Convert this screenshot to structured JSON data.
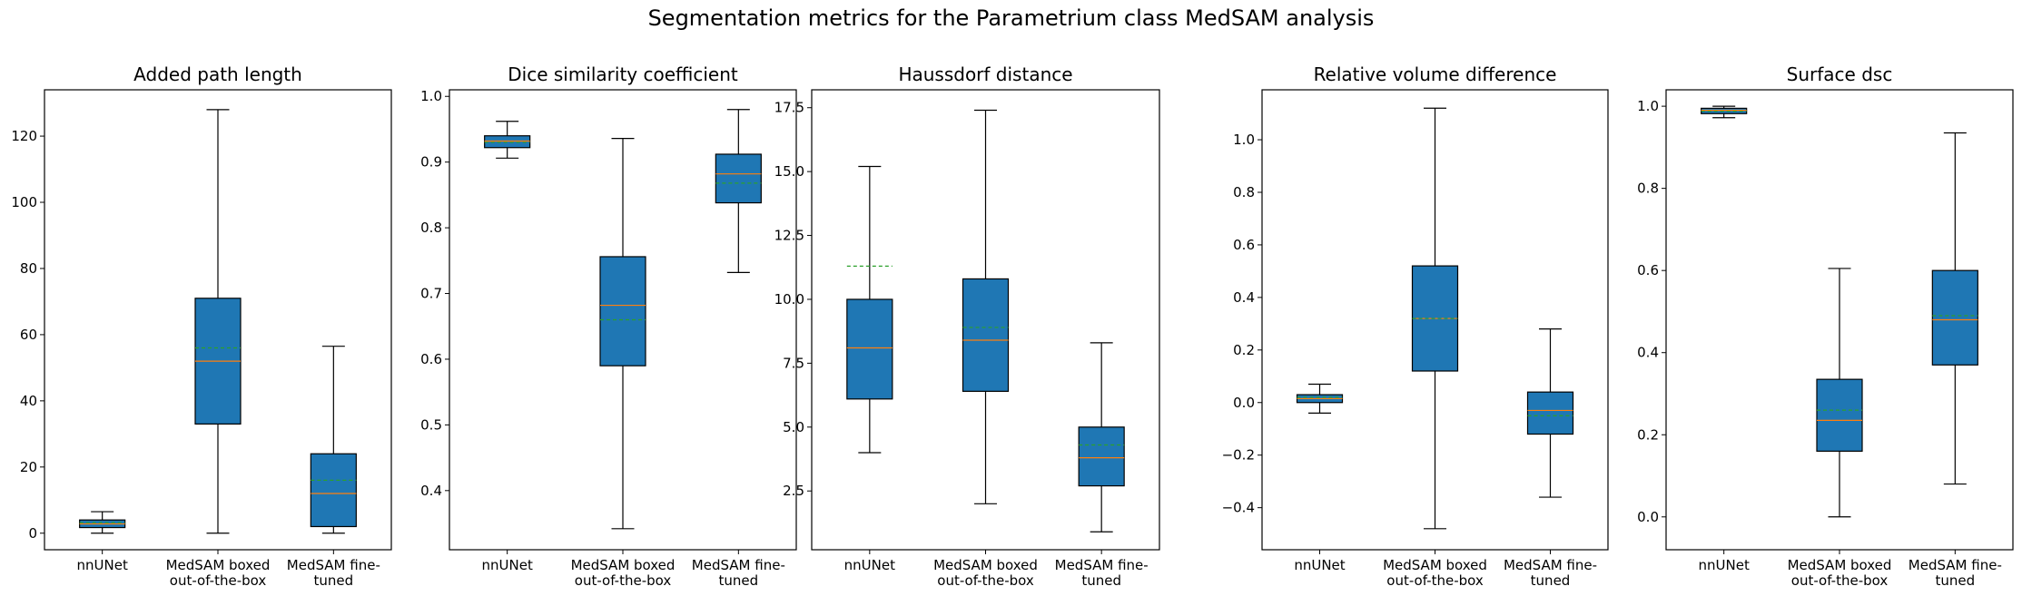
{
  "suptitle": "Segmentation metrics for the Parametrium class MedSAM analysis",
  "colors": {
    "box_fill": "#1f77b4",
    "median": "#ff7f0e",
    "mean": "#2ca02c",
    "whisker": "#000000"
  },
  "chart_data": [
    {
      "type": "box",
      "title": "Added path length",
      "categories": [
        "nnUNet",
        "MedSAM boxed\nout-of-the-box",
        "MedSAM fine-\ntuned"
      ],
      "ylim": [
        -5,
        134
      ],
      "yticks": [
        0,
        20,
        40,
        60,
        80,
        100,
        120
      ],
      "ytick_labels": [
        "0",
        "20",
        "40",
        "60",
        "80",
        "100",
        "120"
      ],
      "boxes": [
        {
          "whislo": 0,
          "q1": 1.7,
          "med": 2.8,
          "mean": 3.2,
          "q3": 4.0,
          "whishi": 6.5
        },
        {
          "whislo": 0,
          "q1": 33,
          "med": 52,
          "mean": 56,
          "q3": 71,
          "whishi": 128
        },
        {
          "whislo": 0,
          "q1": 2,
          "med": 12,
          "mean": 16,
          "q3": 24,
          "whishi": 56.5
        }
      ]
    },
    {
      "type": "box",
      "title": "Dice similarity coefficient",
      "categories": [
        "nnUNet",
        "MedSAM boxed\nout-of-the-box",
        "MedSAM fine-\ntuned"
      ],
      "ylim": [
        0.31,
        1.01
      ],
      "yticks": [
        0.4,
        0.5,
        0.6,
        0.7,
        0.8,
        0.9,
        1.0
      ],
      "ytick_labels": [
        "0.4",
        "0.5",
        "0.6",
        "0.7",
        "0.8",
        "0.9",
        "1.0"
      ],
      "boxes": [
        {
          "whislo": 0.906,
          "q1": 0.922,
          "med": 0.932,
          "mean": 0.93,
          "q3": 0.94,
          "whishi": 0.962
        },
        {
          "whislo": 0.342,
          "q1": 0.59,
          "med": 0.682,
          "mean": 0.66,
          "q3": 0.756,
          "whishi": 0.936
        },
        {
          "whislo": 0.732,
          "q1": 0.838,
          "med": 0.882,
          "mean": 0.868,
          "q3": 0.912,
          "whishi": 0.98
        }
      ]
    },
    {
      "type": "box",
      "title": "Haussdorf distance",
      "categories": [
        "nnUNet",
        "MedSAM boxed\nout-of-the-box",
        "MedSAM fine-\ntuned"
      ],
      "ylim": [
        0.2,
        18.2
      ],
      "yticks": [
        2.5,
        5.0,
        7.5,
        10.0,
        12.5,
        15.0,
        17.5
      ],
      "ytick_labels": [
        "2.5",
        "5.0",
        "7.5",
        "10.0",
        "12.5",
        "15.0",
        "17.5"
      ],
      "boxes": [
        {
          "whislo": 4.0,
          "q1": 6.1,
          "med": 8.1,
          "mean": 11.3,
          "q3": 10.0,
          "whishi": 15.2
        },
        {
          "whislo": 2.0,
          "q1": 6.4,
          "med": 8.4,
          "mean": 8.9,
          "q3": 10.8,
          "whishi": 17.4
        },
        {
          "whislo": 0.9,
          "q1": 2.7,
          "med": 3.8,
          "mean": 4.3,
          "q3": 5.0,
          "whishi": 8.3
        }
      ]
    },
    {
      "type": "box",
      "title": "Relative volume difference",
      "categories": [
        "nnUNet",
        "MedSAM boxed\nout-of-the-box",
        "MedSAM fine-\ntuned"
      ],
      "ylim": [
        -0.56,
        1.19
      ],
      "yticks": [
        -0.4,
        -0.2,
        0.0,
        0.2,
        0.4,
        0.6,
        0.8,
        1.0
      ],
      "ytick_labels": [
        "−0.4",
        "−0.2",
        "0.0",
        "0.2",
        "0.4",
        "0.6",
        "0.8",
        "1.0"
      ],
      "boxes": [
        {
          "whislo": -0.04,
          "q1": 0.0,
          "med": 0.015,
          "mean": 0.02,
          "q3": 0.03,
          "whishi": 0.07
        },
        {
          "whislo": -0.48,
          "q1": 0.12,
          "med": 0.32,
          "mean": 0.32,
          "q3": 0.52,
          "whishi": 1.12
        },
        {
          "whislo": -0.36,
          "q1": -0.12,
          "med": -0.03,
          "mean": -0.05,
          "q3": 0.04,
          "whishi": 0.28
        }
      ]
    },
    {
      "type": "box",
      "title": "Surface dsc",
      "categories": [
        "nnUNet",
        "MedSAM boxed\nout-of-the-box",
        "MedSAM fine-\ntuned"
      ],
      "ylim": [
        -0.08,
        1.04
      ],
      "yticks": [
        0.0,
        0.2,
        0.4,
        0.6,
        0.8,
        1.0
      ],
      "ytick_labels": [
        "0.0",
        "0.2",
        "0.4",
        "0.6",
        "0.8",
        "1.0"
      ],
      "boxes": [
        {
          "whislo": 0.972,
          "q1": 0.982,
          "med": 0.99,
          "mean": 0.988,
          "q3": 0.995,
          "whishi": 1.0
        },
        {
          "whislo": 0.0,
          "q1": 0.16,
          "med": 0.235,
          "mean": 0.26,
          "q3": 0.335,
          "whishi": 0.605
        },
        {
          "whislo": 0.08,
          "q1": 0.37,
          "med": 0.48,
          "mean": 0.49,
          "q3": 0.6,
          "whishi": 0.935
        }
      ]
    }
  ]
}
